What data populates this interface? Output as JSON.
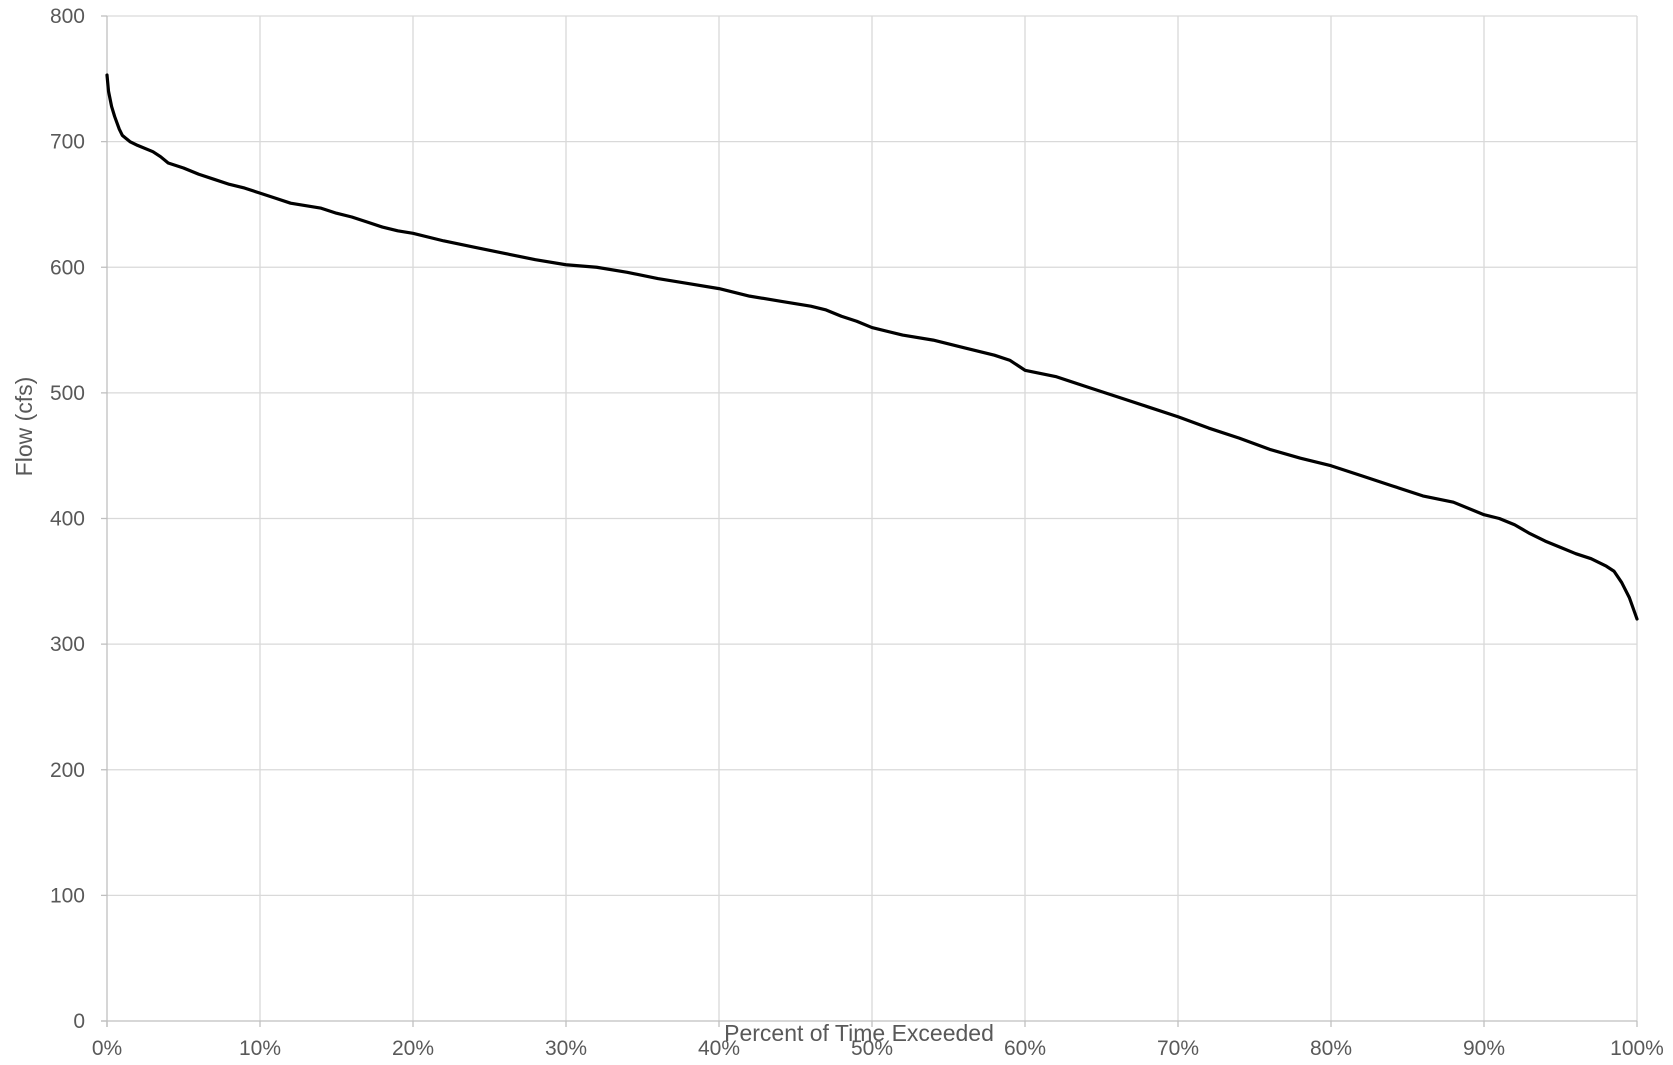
{
  "chart_data": {
    "type": "line",
    "title": "",
    "xlabel": "Percent of Time Exceeded",
    "ylabel": "Flow (cfs)",
    "xlim": [
      0,
      100
    ],
    "ylim": [
      0,
      800
    ],
    "x_ticks": [
      "0%",
      "10%",
      "20%",
      "30%",
      "40%",
      "50%",
      "60%",
      "70%",
      "80%",
      "90%",
      "100%"
    ],
    "y_ticks": [
      "0",
      "100",
      "200",
      "300",
      "400",
      "500",
      "600",
      "700",
      "800"
    ],
    "grid": true,
    "legend": "none",
    "series": [
      {
        "color": "#000000",
        "x": [
          0,
          0.1,
          0.3,
          0.5,
          0.8,
          1,
          1.5,
          2,
          3,
          3.5,
          4,
          5,
          6,
          7,
          8,
          9,
          10,
          11,
          12,
          13,
          14,
          15,
          16,
          17,
          18,
          19,
          20,
          22,
          24,
          26,
          28,
          30,
          32,
          34,
          36,
          38,
          40,
          42,
          44,
          46,
          47,
          48,
          49,
          50,
          52,
          54,
          56,
          58,
          59,
          60,
          62,
          64,
          66,
          68,
          70,
          72,
          74,
          76,
          78,
          80,
          82,
          84,
          86,
          88,
          90,
          91,
          92,
          93,
          94,
          95,
          96,
          97,
          98,
          98.5,
          99,
          99.5,
          100
        ],
        "y": [
          753,
          740,
          728,
          720,
          710,
          705,
          700,
          697,
          692,
          688,
          683,
          679,
          674,
          670,
          666,
          663,
          659,
          655,
          651,
          649,
          647,
          643,
          640,
          636,
          632,
          629,
          627,
          621,
          616,
          611,
          606,
          602,
          600,
          596,
          591,
          587,
          583,
          577,
          573,
          569,
          566,
          561,
          557,
          552,
          546,
          542,
          536,
          530,
          526,
          518,
          513,
          505,
          497,
          489,
          481,
          472,
          464,
          455,
          448,
          442,
          434,
          426,
          418,
          413,
          403,
          400,
          395,
          388,
          382,
          377,
          372,
          368,
          362,
          358,
          349,
          337,
          320
        ]
      }
    ]
  }
}
